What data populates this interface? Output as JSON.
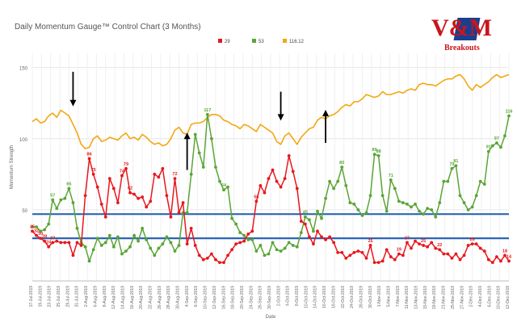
{
  "header": {
    "title": "Daily Momentum Gauge™ Control Chart (3 Months)"
  },
  "logo": {
    "brand": "V&M",
    "tagline": "Breakouts"
  },
  "colors": {
    "series_29": "#e8171d",
    "series_53": "#5aa536",
    "series_price": "#f3a712",
    "control_line": "#2b66b3",
    "arrow": "#000000",
    "grid": "#e6e6e6"
  },
  "chart_data": {
    "type": "line",
    "title": "Daily Momentum Gauge™ Control Chart (3 Months)",
    "xlabel": "Date",
    "ylabel": "Momentum Strength",
    "ylim": [
      0,
      160
    ],
    "yticks": [
      50,
      100,
      150
    ],
    "grid": true,
    "legend_position": "top-center",
    "x_tick_labels": [
      "17-Jul-2019",
      "19-Jul-2019",
      "23-Jul-2019",
      "25-Jul-2019",
      "29-Jul-2019",
      "31-Jul-2019",
      "2-Aug-2019",
      "6-Aug-2019",
      "8-Aug-2019",
      "12-Aug-2019",
      "14-Aug-2019",
      "16-Aug-2019",
      "20-Aug-2019",
      "22-Aug-2019",
      "26-Aug-2019",
      "28-Aug-2019",
      "30-Aug-2019",
      "4-Sep-2019",
      "6-Sep-2019",
      "10-Sep-2019",
      "12-Sep-2019",
      "16-Sep-2019",
      "18-Sep-2019",
      "20-Sep-2019",
      "24-Sep-2019",
      "26-Sep-2019",
      "30-Sep-2019",
      "2-Oct-2019",
      "4-Oct-2019",
      "8-Oct-2019",
      "10-Oct-2019",
      "14-Oct-2019",
      "16-Oct-2019",
      "18-Oct-2019",
      "22-Oct-2019",
      "24-Oct-2019",
      "28-Oct-2019",
      "30-Oct-2019",
      "1-Nov-2019",
      "5-Nov-2019",
      "7-Nov-2019",
      "11-Nov-2019",
      "13-Nov-2019",
      "15-Nov-2019",
      "19-Nov-2019",
      "21-Nov-2019",
      "25-Nov-2019",
      "27-Nov-2019",
      "2-Dec-2019",
      "4-Dec-2019",
      "6-Dec-2019",
      "10-Dec-2019",
      "12-Dec-2019"
    ],
    "control_lines": [
      47,
      30
    ],
    "series": [
      {
        "name": "29",
        "color": "#e8171d",
        "labeled": true,
        "values": [
          35,
          32,
          30,
          28,
          24,
          27,
          28,
          27,
          27,
          27,
          18,
          27,
          25,
          60,
          86,
          75,
          66,
          54,
          45,
          72,
          65,
          55,
          74,
          79,
          62,
          61,
          58,
          59,
          52,
          56,
          75,
          73,
          79,
          60,
          45,
          72,
          48,
          55,
          26,
          37,
          25,
          18,
          15,
          16,
          19,
          15,
          13,
          13,
          18,
          22,
          26,
          27,
          28,
          33,
          35,
          56,
          67,
          62,
          72,
          78,
          70,
          66,
          72,
          88,
          77,
          65,
          42,
          40,
          31,
          26,
          35,
          31,
          29,
          31,
          27,
          20,
          20,
          16,
          18,
          20,
          21,
          20,
          16,
          25,
          13,
          13,
          14,
          22,
          17,
          15,
          19,
          18,
          27,
          23,
          28,
          26,
          25,
          24,
          27,
          23,
          22,
          19,
          19,
          16,
          19,
          15,
          18,
          25,
          26,
          26,
          23,
          21,
          15,
          13,
          17,
          14,
          18,
          14
        ],
        "visible_point_labels": [
          35,
          32,
          30,
          28,
          24,
          27,
          86,
          75,
          74,
          79,
          62,
          72,
          56,
          37,
          25,
          19,
          88,
          77,
          27,
          25,
          22,
          28,
          26,
          18,
          14
        ]
      },
      {
        "name": "53",
        "color": "#5aa536",
        "labeled": true,
        "values": [
          38,
          38,
          35,
          36,
          40,
          57,
          51,
          57,
          58,
          65,
          55,
          37,
          27,
          24,
          14,
          22,
          30,
          25,
          27,
          32,
          24,
          31,
          19,
          21,
          24,
          32,
          28,
          37,
          29,
          23,
          18,
          23,
          26,
          31,
          27,
          21,
          25,
          48,
          48,
          75,
          103,
          90,
          80,
          117,
          100,
          80,
          70,
          64,
          66,
          44,
          40,
          34,
          32,
          29,
          29,
          21,
          25,
          18,
          19,
          27,
          22,
          21,
          23,
          27,
          25,
          24,
          34,
          45,
          43,
          35,
          49,
          44,
          58,
          70,
          65,
          70,
          80,
          67,
          55,
          54,
          50,
          46,
          48,
          60,
          89,
          88,
          60,
          49,
          71,
          65,
          56,
          55,
          54,
          52,
          54,
          49,
          47,
          51,
          50,
          45,
          55,
          70,
          70,
          79,
          81,
          60,
          55,
          50,
          52,
          60,
          70,
          68,
          91,
          95,
          97,
          94,
          102,
          116
        ],
        "visible_point_labels": [
          57,
          65,
          117,
          103,
          64,
          45,
          80,
          89,
          88,
          71,
          79,
          81,
          91,
          97,
          116
        ]
      },
      {
        "name": "116.12",
        "color": "#f3a712",
        "labeled": false,
        "values": [
          112,
          114,
          111,
          112,
          116,
          118,
          115,
          120,
          118,
          116,
          110,
          104,
          96,
          93,
          94,
          100,
          102,
          98,
          99,
          101,
          100,
          99,
          102,
          104,
          100,
          101,
          99,
          103,
          101,
          98,
          96,
          97,
          95,
          96,
          100,
          106,
          108,
          104,
          103,
          110,
          111,
          111,
          112,
          115,
          117,
          117,
          116,
          113,
          112,
          110,
          109,
          107,
          110,
          109,
          107,
          105,
          110,
          108,
          106,
          104,
          98,
          96,
          102,
          104,
          100,
          96,
          101,
          104,
          107,
          108,
          113,
          115,
          114,
          116,
          117,
          119,
          122,
          124,
          123,
          126,
          126,
          128,
          131,
          130,
          129,
          130,
          133,
          131,
          131,
          132,
          133,
          132,
          134,
          135,
          134,
          138,
          139,
          138,
          138,
          137,
          139,
          141,
          142,
          142,
          144,
          145,
          142,
          137,
          134,
          138,
          136,
          138,
          140,
          143,
          145,
          143,
          144,
          145
        ]
      }
    ],
    "annotations": [
      {
        "type": "arrow-down",
        "x_index": 10,
        "y_start": 147,
        "y_end": 125
      },
      {
        "type": "arrow-up",
        "x_index": 38,
        "y_start": 78,
        "y_end": 102
      },
      {
        "type": "arrow-down",
        "x_index": 61,
        "y_start": 133,
        "y_end": 115
      },
      {
        "type": "arrow-up",
        "x_index": 72,
        "y_start": 97,
        "y_end": 118
      }
    ]
  }
}
